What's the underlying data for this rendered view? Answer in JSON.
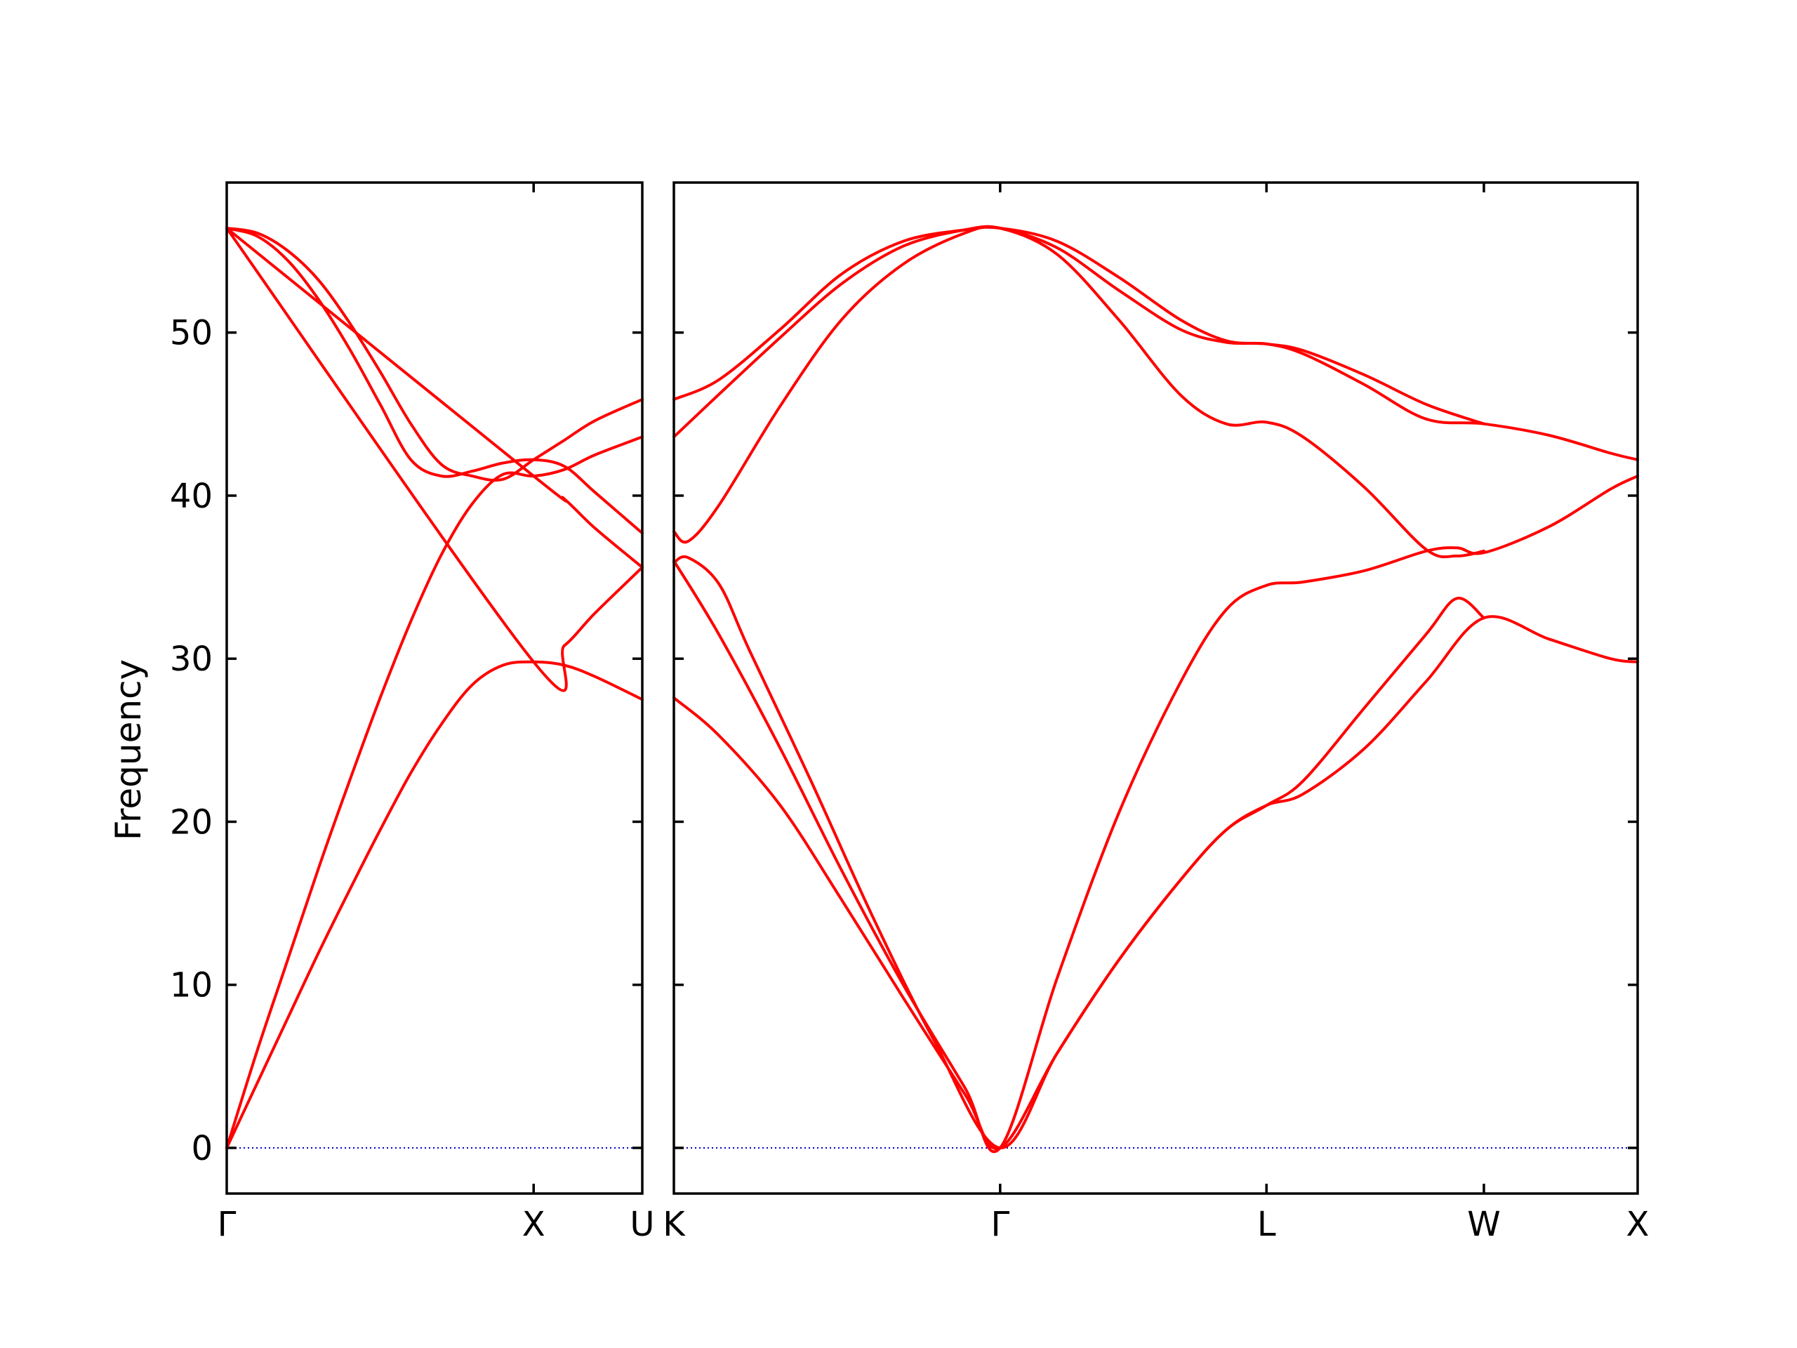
{
  "chart_data": {
    "type": "line",
    "title": "",
    "ylabel": "Frequency",
    "ylim": [
      -2.8,
      59.2
    ],
    "yticks": [
      0,
      10,
      20,
      30,
      40,
      50
    ],
    "y_tick_labels": [
      "0",
      "10",
      "20",
      "30",
      "40",
      "50"
    ],
    "grid": false,
    "colors": {
      "bands": "#ff0000",
      "zero_line": "#0000cc",
      "axes": "#000000"
    },
    "segments": [
      {
        "path_labels": [
          "Γ",
          "X",
          "U"
        ],
        "x": [
          0.0,
          1.0,
          1.354
        ],
        "series": [
          {
            "values": [
              [
                0.0,
                0.0
              ],
              [
                0.1,
                4.0
              ],
              [
                0.2,
                8.0
              ],
              [
                0.3,
                12.0
              ],
              [
                0.4,
                15.8
              ],
              [
                0.5,
                19.5
              ],
              [
                0.6,
                23.0
              ],
              [
                0.7,
                26.0
              ],
              [
                0.8,
                28.4
              ],
              [
                0.9,
                29.6
              ],
              [
                1.0,
                29.8
              ],
              [
                1.1,
                29.6
              ],
              [
                1.2,
                28.9
              ],
              [
                1.354,
                27.5
              ]
            ]
          },
          {
            "values": [
              [
                0.0,
                0.0
              ],
              [
                0.1,
                6.0
              ],
              [
                0.2,
                11.6
              ],
              [
                0.3,
                17.2
              ],
              [
                0.4,
                22.5
              ],
              [
                0.5,
                27.6
              ],
              [
                0.6,
                32.3
              ],
              [
                0.7,
                36.4
              ],
              [
                0.8,
                39.5
              ],
              [
                0.9,
                41.3
              ],
              [
                1.0,
                41.2
              ],
              [
                1.1,
                41.6
              ],
              [
                1.2,
                42.5
              ],
              [
                1.354,
                43.6
              ]
            ]
          },
          {
            "values": [
              [
                0.0,
                56.4
              ],
              [
                0.1,
                56.1
              ],
              [
                0.2,
                55.0
              ],
              [
                0.3,
                53.2
              ],
              [
                0.4,
                50.6
              ],
              [
                0.5,
                47.6
              ],
              [
                0.6,
                44.4
              ],
              [
                0.7,
                41.9
              ],
              [
                0.8,
                41.2
              ],
              [
                0.9,
                41.0
              ],
              [
                1.0,
                42.2
              ],
              [
                1.1,
                43.4
              ],
              [
                1.2,
                44.6
              ],
              [
                1.354,
                45.9
              ]
            ]
          },
          {
            "values": [
              [
                0.0,
                56.4
              ],
              [
                0.1,
                55.9
              ],
              [
                0.2,
                54.4
              ],
              [
                0.3,
                52.0
              ],
              [
                0.4,
                49.0
              ],
              [
                0.5,
                45.6
              ],
              [
                0.6,
                42.2
              ],
              [
                0.7,
                41.2
              ],
              [
                0.8,
                41.5
              ],
              [
                0.9,
                42.0
              ],
              [
                1.0,
                42.2
              ],
              [
                1.1,
                41.8
              ],
              [
                1.2,
                40.2
              ],
              [
                1.354,
                37.7
              ]
            ]
          },
          {
            "values": [
              [
                0.0,
                56.4
              ],
              [
                1.0,
                41.2
              ],
              [
                1.1,
                39.8
              ],
              [
                1.2,
                38.0
              ],
              [
                1.354,
                35.6
              ]
            ]
          },
          {
            "values": [
              [
                0.0,
                56.4
              ],
              [
                1.0,
                29.8
              ],
              [
                1.1,
                30.8
              ],
              [
                1.2,
                32.8
              ],
              [
                1.354,
                35.6
              ]
            ]
          }
        ]
      },
      {
        "path_labels": [
          "K",
          "Γ",
          "L",
          "W",
          "X"
        ],
        "x": [
          1.354,
          2.415,
          3.281,
          3.988,
          4.488
        ],
        "series": [
          {
            "values": [
              [
                1.354,
                27.6
              ],
              [
                1.5,
                25.3
              ],
              [
                1.7,
                21.0
              ],
              [
                1.9,
                15.2
              ],
              [
                2.1,
                9.2
              ],
              [
                2.3,
                3.3
              ],
              [
                2.415,
                0.0
              ],
              [
                2.6,
                5.8
              ],
              [
                2.8,
                11.5
              ],
              [
                3.0,
                16.4
              ],
              [
                3.15,
                19.5
              ],
              [
                3.281,
                21.0
              ],
              [
                3.4,
                21.7
              ],
              [
                3.6,
                24.5
              ],
              [
                3.8,
                28.6
              ],
              [
                3.988,
                32.5
              ],
              [
                4.2,
                31.2
              ],
              [
                4.4,
                30.0
              ],
              [
                4.488,
                29.8
              ]
            ]
          },
          {
            "values": [
              [
                1.354,
                36.0
              ],
              [
                1.5,
                31.5
              ],
              [
                1.7,
                24.5
              ],
              [
                1.9,
                17.0
              ],
              [
                2.1,
                10.0
              ],
              [
                2.3,
                3.7
              ],
              [
                2.415,
                0.0
              ],
              [
                2.6,
                10.4
              ],
              [
                2.8,
                20.5
              ],
              [
                3.0,
                28.5
              ],
              [
                3.15,
                33.0
              ],
              [
                3.281,
                34.5
              ],
              [
                3.4,
                34.7
              ],
              [
                3.6,
                35.4
              ],
              [
                3.8,
                36.6
              ],
              [
                3.9,
                36.8
              ],
              [
                3.988,
                36.5
              ],
              [
                4.2,
                38.1
              ],
              [
                4.4,
                40.4
              ],
              [
                4.488,
                41.2
              ]
            ]
          },
          {
            "values": [
              [
                1.354,
                35.9
              ],
              [
                1.4,
                36.2
              ],
              [
                1.5,
                34.6
              ],
              [
                1.6,
                30.5
              ],
              [
                1.8,
                22.5
              ],
              [
                2.0,
                14.2
              ],
              [
                2.2,
                6.6
              ],
              [
                2.415,
                0.0
              ],
              [
                2.6,
                5.8
              ],
              [
                2.8,
                11.5
              ],
              [
                3.0,
                16.4
              ],
              [
                3.15,
                19.5
              ],
              [
                3.281,
                21.0
              ],
              [
                3.4,
                22.5
              ],
              [
                3.6,
                27.0
              ],
              [
                3.8,
                31.5
              ],
              [
                3.9,
                33.7
              ],
              [
                3.988,
                32.5
              ]
            ]
          },
          {
            "values": [
              [
                1.354,
                37.8
              ],
              [
                1.4,
                37.2
              ],
              [
                1.5,
                39.4
              ],
              [
                1.7,
                45.5
              ],
              [
                1.9,
                50.8
              ],
              [
                2.1,
                54.2
              ],
              [
                2.3,
                56.1
              ],
              [
                2.415,
                56.4
              ],
              [
                2.6,
                54.8
              ],
              [
                2.8,
                50.8
              ],
              [
                3.0,
                46.2
              ],
              [
                3.15,
                44.4
              ],
              [
                3.281,
                44.5
              ],
              [
                3.4,
                43.6
              ],
              [
                3.6,
                40.5
              ],
              [
                3.8,
                36.7
              ],
              [
                3.9,
                36.3
              ],
              [
                3.988,
                36.6
              ]
            ]
          },
          {
            "values": [
              [
                1.354,
                43.6
              ],
              [
                1.5,
                46.2
              ],
              [
                1.7,
                49.7
              ],
              [
                1.9,
                53.0
              ],
              [
                2.1,
                55.3
              ],
              [
                2.3,
                56.3
              ],
              [
                2.415,
                56.4
              ],
              [
                2.6,
                55.2
              ],
              [
                2.8,
                52.6
              ],
              [
                3.0,
                50.2
              ],
              [
                3.15,
                49.4
              ],
              [
                3.281,
                49.3
              ],
              [
                3.4,
                48.7
              ],
              [
                3.6,
                46.8
              ],
              [
                3.8,
                44.7
              ],
              [
                3.988,
                44.4
              ],
              [
                4.2,
                43.7
              ],
              [
                4.4,
                42.6
              ],
              [
                4.488,
                42.2
              ]
            ]
          },
          {
            "values": [
              [
                1.354,
                45.9
              ],
              [
                1.5,
                47.1
              ],
              [
                1.7,
                50.2
              ],
              [
                1.9,
                53.6
              ],
              [
                2.1,
                55.6
              ],
              [
                2.3,
                56.3
              ],
              [
                2.415,
                56.4
              ],
              [
                2.6,
                55.6
              ],
              [
                2.8,
                53.4
              ],
              [
                3.0,
                50.8
              ],
              [
                3.15,
                49.5
              ],
              [
                3.281,
                49.3
              ],
              [
                3.4,
                48.9
              ],
              [
                3.6,
                47.4
              ],
              [
                3.8,
                45.6
              ],
              [
                3.988,
                44.4
              ]
            ]
          }
        ]
      }
    ]
  }
}
